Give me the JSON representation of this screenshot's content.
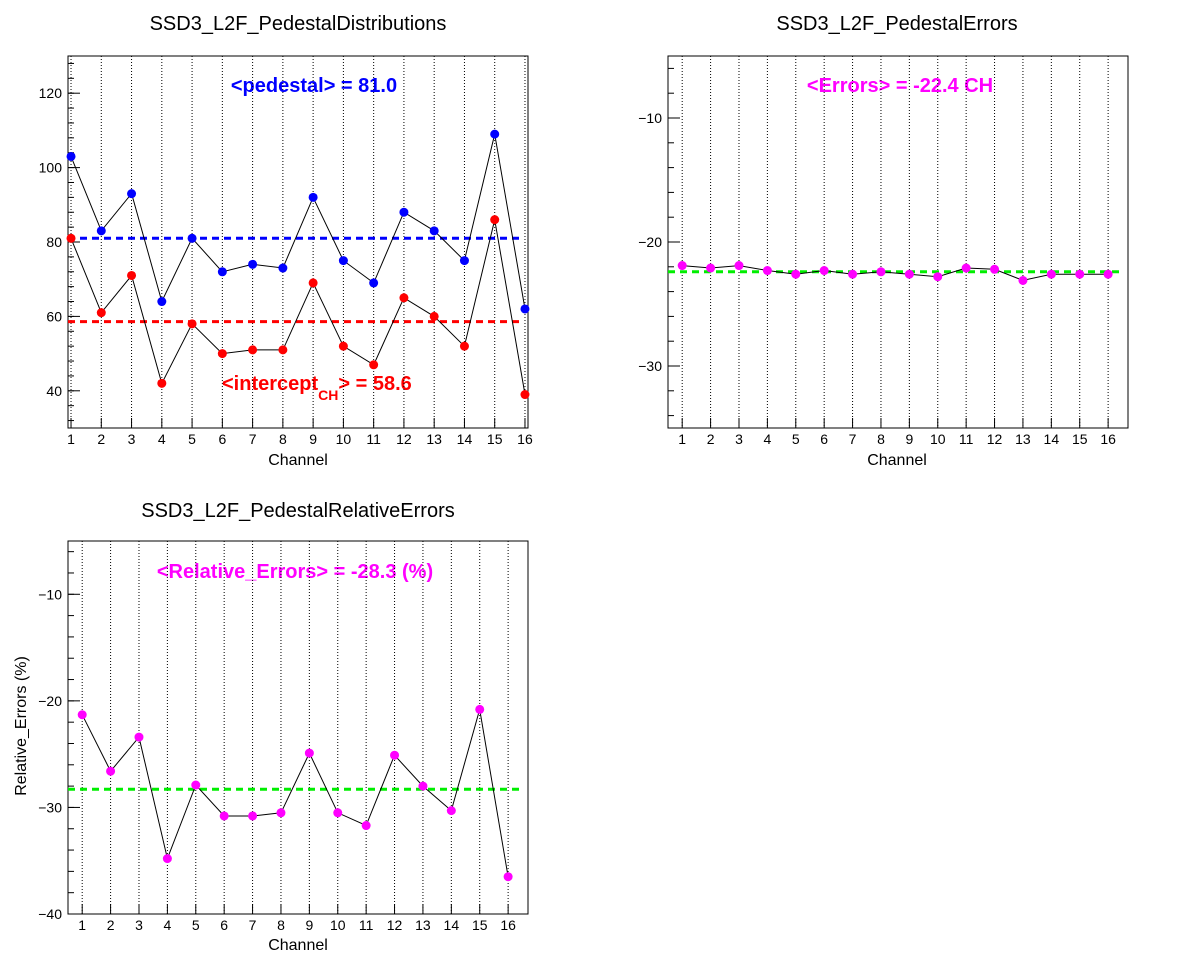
{
  "colors": {
    "pedestal": "#0000ff",
    "intercept": "#ff0000",
    "errors": "#ff00ff",
    "mean_line_green": "#00ee00",
    "axis": "#000000"
  },
  "chart_data": [
    {
      "type": "line",
      "title": "SSD3_L2F_PedestalDistributions",
      "xlabel": "Channel",
      "ylabel": "",
      "x": [
        1,
        2,
        3,
        4,
        5,
        6,
        7,
        8,
        9,
        10,
        11,
        12,
        13,
        14,
        15,
        16
      ],
      "xlim": [
        0.9,
        16.1
      ],
      "ylim": [
        30,
        130
      ],
      "yticks": [
        40,
        60,
        80,
        100,
        120
      ],
      "grid": "vertical dotted",
      "series": [
        {
          "key": "pedestal",
          "values": [
            103,
            83,
            93,
            64,
            81,
            72,
            74,
            73,
            92,
            75,
            69,
            88,
            83,
            75,
            109,
            62
          ]
        },
        {
          "key": "intercept",
          "values": [
            81,
            61,
            71,
            42,
            58,
            50,
            51,
            51,
            69,
            52,
            47,
            65,
            60,
            52,
            86,
            39
          ]
        }
      ],
      "mean_lines": [
        {
          "key": "pedestal",
          "value": 81.0
        },
        {
          "key": "intercept",
          "value": 58.6
        }
      ],
      "annotations": {
        "pedestal_text": "<pedestal> = 81.0",
        "intercept_prefix": "<intercept",
        "intercept_sub": "CH",
        "intercept_suffix": "> = 58.6"
      }
    },
    {
      "type": "line",
      "title": "SSD3_L2F_PedestalErrors",
      "xlabel": "Channel",
      "ylabel": "",
      "x": [
        1,
        2,
        3,
        4,
        5,
        6,
        7,
        8,
        9,
        10,
        11,
        12,
        13,
        14,
        15,
        16
      ],
      "xlim": [
        0.5,
        16.7
      ],
      "ylim": [
        -35,
        -5
      ],
      "yticks": [
        -30,
        -20,
        -10
      ],
      "grid": "vertical dotted",
      "series": [
        {
          "key": "errors",
          "values": [
            -21.9,
            -22.1,
            -21.9,
            -22.3,
            -22.6,
            -22.3,
            -22.6,
            -22.4,
            -22.6,
            -22.8,
            -22.1,
            -22.2,
            -23.1,
            -22.6,
            -22.6,
            -22.6
          ]
        }
      ],
      "mean_lines": [
        {
          "key": "errors",
          "value": -22.4
        }
      ],
      "annotations": {
        "text": "<Errors> = -22.4 CH"
      }
    },
    {
      "type": "line",
      "title": "SSD3_L2F_PedestalRelativeErrors",
      "xlabel": "Channel",
      "ylabel": "Relative_Errors (%)",
      "x": [
        1,
        2,
        3,
        4,
        5,
        6,
        7,
        8,
        9,
        10,
        11,
        12,
        13,
        14,
        15,
        16
      ],
      "xlim": [
        0.5,
        16.7
      ],
      "ylim": [
        -40,
        -5
      ],
      "yticks": [
        -40,
        -30,
        -20,
        -10
      ],
      "grid": "vertical dotted",
      "series": [
        {
          "key": "errors",
          "values": [
            -21.3,
            -26.6,
            -23.4,
            -34.8,
            -27.9,
            -30.8,
            -30.8,
            -30.5,
            -24.9,
            -30.5,
            -31.7,
            -25.1,
            -28.0,
            -30.3,
            -20.8,
            -36.5
          ]
        }
      ],
      "mean_lines": [
        {
          "key": "errors",
          "value": -28.3
        }
      ],
      "annotations": {
        "text": "<Relative_Errors> = -28.3 (%)"
      }
    }
  ]
}
